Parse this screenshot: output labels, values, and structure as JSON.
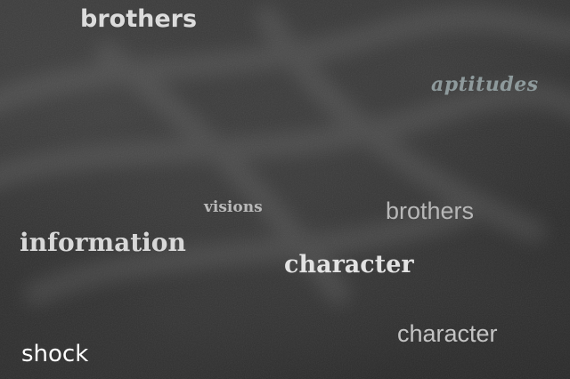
{
  "background": {
    "type": "chalkboard",
    "base_color": "#2e2e2e",
    "smudge_color": "#8a8a8a"
  },
  "words": {
    "brothers_top": {
      "text": "brothers",
      "color": "#dcdcdc"
    },
    "aptitudes": {
      "text": "aptitudes",
      "color": "#8e9a9c"
    },
    "visions": {
      "text": "visions",
      "color": "#b9b9b9"
    },
    "brothers_right": {
      "text": "brothers",
      "color": "#b7b7b7"
    },
    "information": {
      "text": "information",
      "color": "#d8d8d8"
    },
    "character_center": {
      "text": "character",
      "color": "#e2e2e2"
    },
    "character_bottom": {
      "text": "character",
      "color": "#c4c4c4"
    },
    "shock": {
      "text": "shock",
      "color": "#ffffff"
    }
  }
}
